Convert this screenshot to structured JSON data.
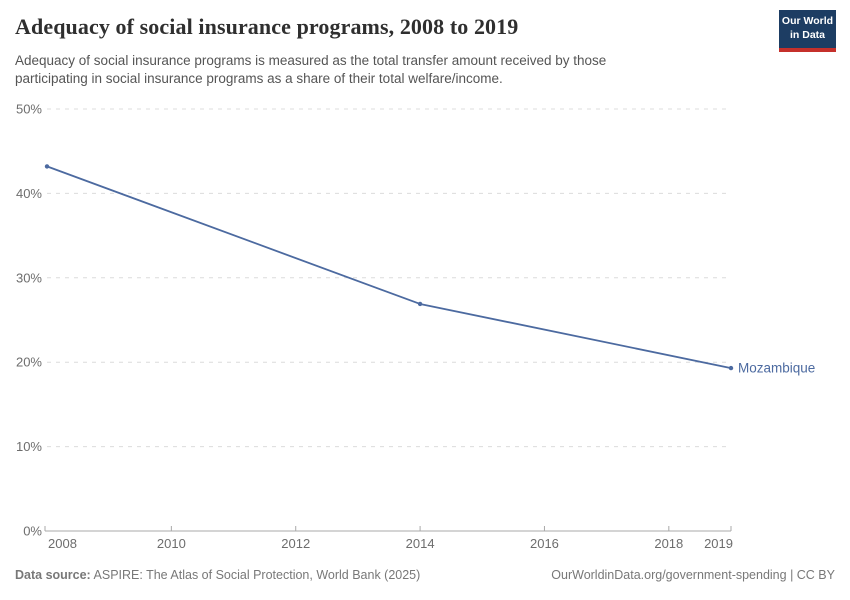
{
  "header": {
    "title": "Adequacy of social insurance programs, 2008 to 2019",
    "subtitle": "Adequacy of social insurance programs is measured as the total transfer amount received by those participating in social insurance programs as a share of their total welfare/income."
  },
  "logo": {
    "line1": "Our World",
    "line2": "in Data"
  },
  "chart_data": {
    "type": "line",
    "title": "Adequacy of social insurance programs, 2008 to 2019",
    "series": [
      {
        "name": "Mozambique",
        "x": [
          2008,
          2014,
          2019
        ],
        "values": [
          43.2,
          26.9,
          19.3
        ]
      }
    ],
    "entity_label": "Mozambique",
    "xlim": [
      2008,
      2019
    ],
    "ylim": [
      0,
      50
    ],
    "xticks": [
      2008,
      2010,
      2012,
      2014,
      2016,
      2018,
      2019
    ],
    "yticks": [
      0,
      10,
      20,
      30,
      40,
      50
    ],
    "ytick_suffix": "%",
    "grid": "horizontal-dashed",
    "legend_position": "end-of-line"
  },
  "footer": {
    "source_label": "Data source:",
    "source_text": " ASPIRE: The Atlas of Social Protection, World Bank (2025)",
    "link_text": "OurWorldinData.org/government-spending | CC BY"
  },
  "colors": {
    "line": "#4c6aa0",
    "logo_bg": "#1d3d63",
    "logo_accent": "#c5302b"
  }
}
